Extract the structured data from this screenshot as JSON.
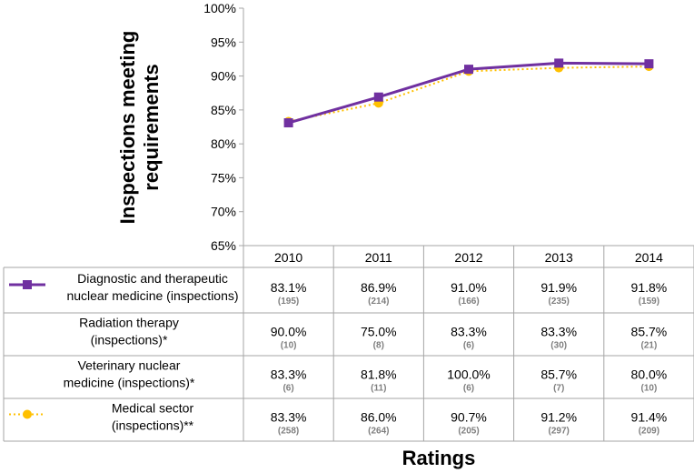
{
  "chart_data": {
    "type": "line",
    "xlabel": "Ratings",
    "ylabel_lines": [
      "Inspections meeting",
      "requirements"
    ],
    "ylim": [
      65,
      100
    ],
    "yticks": [
      "65%",
      "70%",
      "75%",
      "80%",
      "85%",
      "90%",
      "95%",
      "100%"
    ],
    "categories": [
      "2010",
      "2011",
      "2012",
      "2013",
      "2014"
    ],
    "grid": false,
    "legend": "embedded in data table",
    "series": [
      {
        "name_lines": [
          "Diagnostic and therapeutic",
          "nuclear medicine (inspections)"
        ],
        "values": [
          83.1,
          86.9,
          91.0,
          91.9,
          91.8
        ],
        "labels": [
          "83.1%",
          "86.9%",
          "91.0%",
          "91.9%",
          "91.8%"
        ],
        "counts": [
          "(195)",
          "(214)",
          "(166)",
          "(235)",
          "(159)"
        ],
        "color": "#7030a0",
        "marker": "square",
        "line_style": "solid",
        "plotted": true
      },
      {
        "name_lines": [
          "Radiation therapy",
          "(inspections)*"
        ],
        "labels": [
          "90.0%",
          "75.0%",
          "83.3%",
          "83.3%",
          "85.7%"
        ],
        "counts": [
          "(10)",
          "(8)",
          "(6)",
          "(30)",
          "(21)"
        ],
        "plotted": false
      },
      {
        "name_lines": [
          "Veterinary nuclear",
          "medicine (inspections)*"
        ],
        "labels": [
          "83.3%",
          "81.8%",
          "100.0%",
          "85.7%",
          "80.0%"
        ],
        "counts": [
          "(6)",
          "(11)",
          "(6)",
          "(7)",
          "(10)"
        ],
        "plotted": false
      },
      {
        "name_lines": [
          "Medical sector",
          "(inspections)**"
        ],
        "values": [
          83.3,
          86.0,
          90.7,
          91.2,
          91.4
        ],
        "labels": [
          "83.3%",
          "86.0%",
          "90.7%",
          "91.2%",
          "91.4%"
        ],
        "counts": [
          "(258)",
          "(264)",
          "(205)",
          "(297)",
          "(209)"
        ],
        "color": "#ffc000",
        "marker": "circle",
        "line_style": "dotted",
        "plotted": true
      }
    ]
  }
}
